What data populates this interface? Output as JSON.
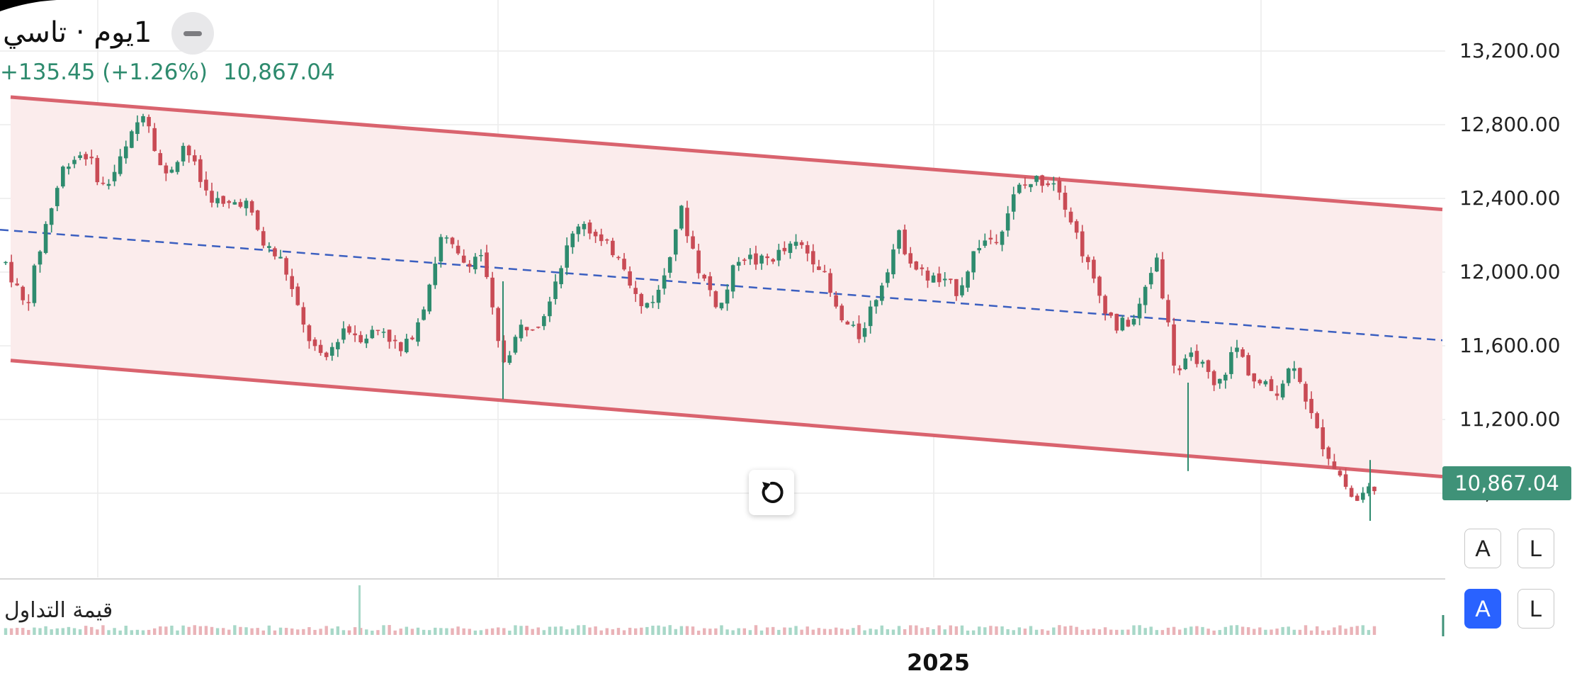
{
  "header": {
    "symbol_title": "1يوم · تاسي",
    "change": "+135.45 (+1.26%)",
    "last_price": "10,867.04"
  },
  "price_axis": {
    "labels": [
      "13,200.00",
      "12,800.00",
      "12,400.00",
      "12,000.00",
      "11,600.00",
      "11,200.00",
      "10,800.00"
    ],
    "current_price_tag": "10,867.04"
  },
  "buttons": {
    "auto_price": "A",
    "log_price": "L",
    "auto_volume": "A",
    "log_volume": "L"
  },
  "volume_pane": {
    "title": "قيمة التداول"
  },
  "time_axis": {
    "year_label": "2025"
  },
  "colors": {
    "up": "#2e8b6e",
    "down": "#c94b55",
    "channel_line": "#d9636e",
    "channel_fill": "#fbecec",
    "midline": "#3b5fc0",
    "price_tag": "#3f9278",
    "active_button": "#2962ff"
  },
  "icons": {
    "reset": "reset-rotate-icon",
    "collapse": "minus-icon"
  },
  "chart_data": {
    "type": "candlestick",
    "y_range": [
      10550,
      13400
    ],
    "y_ticks": [
      13200,
      12800,
      12400,
      12000,
      11600,
      11200,
      10800
    ],
    "channel": {
      "upper": {
        "start": 12950,
        "end": 12340
      },
      "lower": {
        "start": 11520,
        "end": 10890
      },
      "middle": {
        "start": 12230,
        "end": 11630
      }
    },
    "path": [
      12050,
      11800,
      12250,
      12600,
      12650,
      12450,
      12650,
      12900,
      12500,
      12700,
      12450,
      12350,
      12400,
      12150,
      12050,
      11700,
      11500,
      11700,
      11650,
      11700,
      11550,
      11800,
      12200,
      12050,
      12100,
      11500,
      11700,
      11750,
      12050,
      12300,
      12150,
      12100,
      11800,
      11900,
      12350,
      12000,
      11800,
      12100,
      12050,
      12100,
      12150,
      12050,
      11750,
      11650,
      11900,
      12200,
      12000,
      11950,
      11900,
      12150,
      12200,
      12450,
      12500,
      12500,
      12200,
      11900,
      11700,
      11750,
      12100,
      11450,
      11550,
      11350,
      11600,
      11400,
      11350,
      11520,
      11150,
      10950,
      10750,
      10850
    ],
    "summary": {
      "last": 10867.04,
      "change": 135.45,
      "change_pct": 1.26
    }
  }
}
